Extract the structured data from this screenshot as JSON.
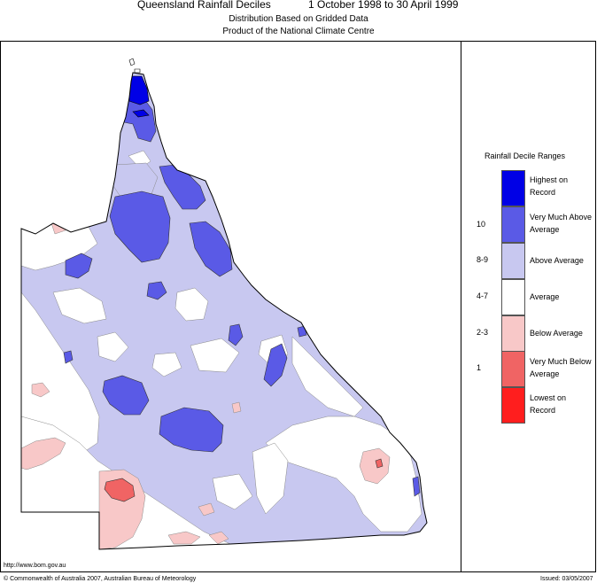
{
  "header": {
    "title": "Queensland Rainfall Deciles",
    "date_range": "1 October 1998 to 30 April 1999",
    "subtitle1": "Distribution Based on Gridded Data",
    "subtitle2": "Product of the National Climate Centre"
  },
  "legend": {
    "title": "Rainfall Decile Ranges",
    "items": [
      {
        "label": "Highest on Record",
        "range": "",
        "color": "#0000e6"
      },
      {
        "label": "Very Much Above Average",
        "range": "10",
        "color": "#5a5ae6"
      },
      {
        "label": "Above Average",
        "range": "8-9",
        "color": "#c8c8f0"
      },
      {
        "label": "Average",
        "range": "4-7",
        "color": "#ffffff"
      },
      {
        "label": "Below Average",
        "range": "2-3",
        "color": "#f8c8c8"
      },
      {
        "label": "Very Much Below Average",
        "range": "1",
        "color": "#f06464"
      },
      {
        "label": "Lowest on Record",
        "range": "",
        "color": "#ff1e1e"
      }
    ]
  },
  "footer": {
    "url": "http://www.bom.gov.au",
    "copyright": "© Commonwealth of Australia 2007, Australian Bureau of Meteorology",
    "issued": "Issued: 03/05/2007"
  }
}
